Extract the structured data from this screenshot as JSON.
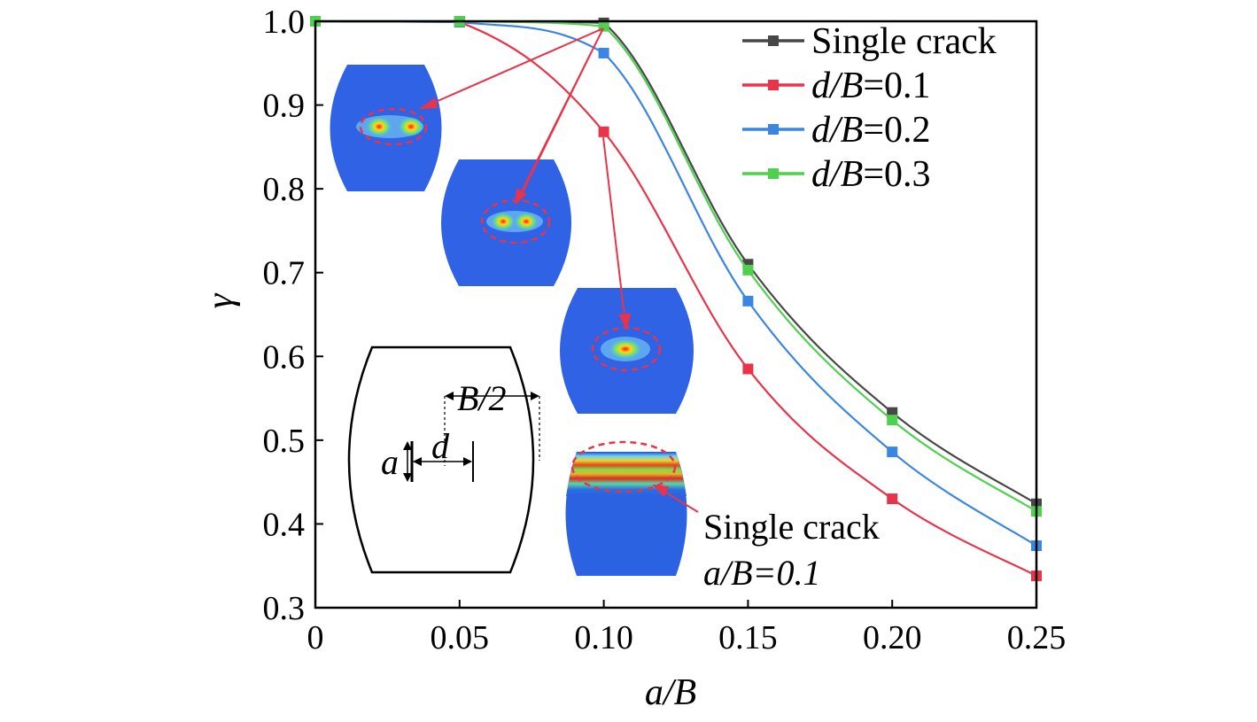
{
  "chart_data": {
    "type": "line",
    "xlabel": "a/B",
    "ylabel": "γ",
    "xlim": [
      0,
      0.25
    ],
    "ylim": [
      0.3,
      1.0
    ],
    "x_ticks": [
      "0",
      "0.05",
      "0.10",
      "0.15",
      "0.20",
      "0.25"
    ],
    "x_tick_values": [
      0,
      0.05,
      0.1,
      0.15,
      0.2,
      0.25
    ],
    "y_ticks": [
      "0.3",
      "0.4",
      "0.5",
      "0.6",
      "0.7",
      "0.8",
      "0.9",
      "1.0"
    ],
    "y_tick_values": [
      0.3,
      0.4,
      0.5,
      0.6,
      0.7,
      0.8,
      0.9,
      1.0
    ],
    "grid": false,
    "legend_position": "top-right",
    "series": [
      {
        "name": "Single crack",
        "color": "#474747",
        "x": [
          0,
          0.05,
          0.1,
          0.15,
          0.2,
          0.25
        ],
        "y": [
          1.0,
          1.0,
          0.998,
          0.71,
          0.533,
          0.424
        ]
      },
      {
        "name": "d/B=0.1",
        "color": "#e8344a",
        "x": [
          0,
          0.05,
          0.1,
          0.15,
          0.2,
          0.25
        ],
        "y": [
          1.0,
          0.999,
          0.868,
          0.585,
          0.43,
          0.338
        ]
      },
      {
        "name": "d/B=0.2",
        "color": "#3b86e0",
        "x": [
          0,
          0.05,
          0.1,
          0.15,
          0.2,
          0.25
        ],
        "y": [
          1.0,
          0.999,
          0.962,
          0.666,
          0.486,
          0.374
        ]
      },
      {
        "name": "d/B=0.3",
        "color": "#50d04f",
        "x": [
          0,
          0.05,
          0.1,
          0.15,
          0.2,
          0.25
        ],
        "y": [
          1.0,
          1.0,
          0.994,
          0.703,
          0.524,
          0.415
        ]
      }
    ],
    "annotations": {
      "single_crack_line1": "Single crack",
      "single_crack_line2": "a/B=0.1"
    },
    "schematic": {
      "label_half_width": "B/2",
      "label_crack": "a",
      "label_distance": "d"
    }
  }
}
